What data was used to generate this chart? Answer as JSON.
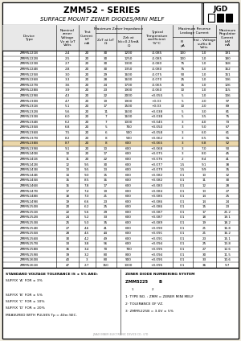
{
  "title": "ZMM52 - SERIES",
  "subtitle": "SURFACE MOUNT ZENER DIODES/MINI MELF",
  "bg_color": "#f0ece0",
  "rows": [
    [
      "ZMM5221B",
      "2.4",
      "20",
      "30",
      "1200",
      "-0.085",
      "100",
      "1.0",
      "191"
    ],
    [
      "ZMM5222B",
      "2.5",
      "20",
      "30",
      "1250",
      "-0.085",
      "100",
      "1.0",
      "180"
    ],
    [
      "ZMM5223B",
      "2.7",
      "20",
      "30",
      "1300",
      "-0.080",
      "75",
      "1.0",
      "168"
    ],
    [
      "ZMM5224B",
      "2.8",
      "20",
      "30",
      "1350",
      "-0.080",
      "75",
      "1.0",
      "162"
    ],
    [
      "ZMM5225B",
      "3.0",
      "20",
      "29",
      "1600",
      "-0.075",
      "50",
      "1.0",
      "151"
    ],
    [
      "ZMM5226B",
      "3.3",
      "20",
      "28",
      "1600",
      "-0.070",
      "25",
      "1.0",
      "136"
    ],
    [
      "ZMM5227B",
      "3.6",
      "20",
      "24",
      "1700",
      "-0.065",
      "15",
      "1.0",
      "126"
    ],
    [
      "ZMM5228B",
      "3.9",
      "20",
      "23",
      "1900",
      "-0.060",
      "10",
      "1.0",
      "115"
    ],
    [
      "ZMM5229B",
      "4.3",
      "20",
      "22",
      "2000",
      "+0.055",
      "5",
      "1.0",
      "106"
    ],
    [
      "ZMM5230B",
      "4.7",
      "20",
      "19",
      "1900",
      "+0.03",
      "5",
      "2.0",
      "97"
    ],
    [
      "ZMM5231B",
      "5.1",
      "20",
      "17",
      "1500",
      "+0.03",
      "10",
      "2.0",
      "89"
    ],
    [
      "ZMM5232B",
      "5.6",
      "20",
      "11",
      "1600",
      "+0.038",
      "5",
      "3.0",
      "81"
    ],
    [
      "ZMM5233B",
      "6.0",
      "20",
      "7",
      "1600",
      "+0.038",
      "5",
      "3.5",
      "75"
    ],
    [
      "ZMM5234B",
      "6.2",
      "20",
      "7",
      "1000",
      "+0.045",
      "3",
      "4.0",
      "73"
    ],
    [
      "ZMM5235B",
      "6.8",
      "20",
      "5",
      "750",
      "+0.050",
      "3",
      "5.0",
      "67"
    ],
    [
      "ZMM5236B",
      "7.5",
      "20",
      "6",
      "500",
      "+0.058",
      "3",
      "6.0",
      "61"
    ],
    [
      "ZMM5237B",
      "8.2",
      "20",
      "8",
      "500",
      "+0.062",
      "3",
      "6.5",
      "55"
    ],
    [
      "ZMM5238B",
      "8.7",
      "20",
      "8",
      "600",
      "+0.065",
      "3",
      "6.8",
      "52"
    ],
    [
      "ZMM5239B",
      "9.1",
      "20",
      "10",
      "600",
      "+0.068",
      "3",
      "7.0",
      "50"
    ],
    [
      "ZMM5240B",
      "10",
      "20",
      "17",
      "600",
      "+0.075",
      "3",
      "8.0",
      "45"
    ],
    [
      "ZMM5241B",
      "11",
      "20",
      "22",
      "600",
      "+0.076",
      "2",
      "8.4",
      "41"
    ],
    [
      "ZMM5242B",
      "12",
      "9.5",
      "30",
      "600",
      "+0.077",
      "1.5",
      "9.1",
      "38"
    ],
    [
      "ZMM5243B",
      "13",
      "9.5",
      "13",
      "600",
      "+0.079",
      "1.5",
      "9.9",
      "35"
    ],
    [
      "ZMM5244B",
      "14",
      "9.0",
      "15",
      "600",
      "+0.082",
      "0.1",
      "10",
      "32"
    ],
    [
      "ZMM5245B",
      "15",
      "8.5",
      "16",
      "600",
      "+0.082",
      "0.1",
      "11",
      "30"
    ],
    [
      "ZMM5246B",
      "16",
      "7.8",
      "17",
      "600",
      "+0.083",
      "0.1",
      "12",
      "28"
    ],
    [
      "ZMM5247B",
      "17",
      "7.4",
      "19",
      "600",
      "+0.084",
      "0.1",
      "13",
      "27"
    ],
    [
      "ZMM5248B",
      "18",
      "7.0",
      "21",
      "600",
      "+0.085",
      "0.1",
      "14",
      "25"
    ],
    [
      "ZMM5249B",
      "19",
      "6.6",
      "23",
      "600",
      "+0.086",
      "0.1",
      "14",
      "24"
    ],
    [
      "ZMM5250B",
      "20",
      "6.2",
      "25",
      "600",
      "+0.086",
      "0.1",
      "15",
      "23"
    ],
    [
      "ZMM5251B",
      "22",
      "5.6",
      "29",
      "600",
      "+0.087",
      "0.1",
      "17",
      "21.2"
    ],
    [
      "ZMM5252B",
      "24",
      "5.2",
      "33",
      "600",
      "+0.087",
      "0.1",
      "18",
      "19.1"
    ],
    [
      "ZMM5253B",
      "25",
      "5.0",
      "35",
      "600",
      "+0.089",
      "0.1",
      "19",
      "18.2"
    ],
    [
      "ZMM5254B",
      "27",
      "4.6",
      "41",
      "600",
      "+0.090",
      "0.1",
      "21",
      "16.8"
    ],
    [
      "ZMM5255B",
      "28",
      "4.5",
      "44",
      "600",
      "+0.091",
      "0.1",
      "21",
      "16.2"
    ],
    [
      "ZMM5256B",
      "30",
      "4.2",
      "49",
      "600",
      "+0.091",
      "0.1",
      "23",
      "15.1"
    ],
    [
      "ZMM5257B",
      "33",
      "3.8",
      "56",
      "600",
      "+0.094",
      "0.1",
      "25",
      "13.8"
    ],
    [
      "ZMM5258B",
      "36",
      "3.4",
      "70",
      "700",
      "+0.095",
      "0.1",
      "27",
      "12.6"
    ],
    [
      "ZMM5259B",
      "39",
      "3.2",
      "80",
      "800",
      "+0.094",
      "0.1",
      "30",
      "11.5"
    ],
    [
      "ZMM5260B",
      "43",
      "3",
      "80",
      "900",
      "+0.095",
      "0.1",
      "33",
      "10.6"
    ],
    [
      "ZMM5261B",
      "47",
      "2.7",
      "150",
      "1000",
      "+0.095",
      "0.1",
      "36",
      "9.7"
    ]
  ],
  "highlight_row": "ZMM5238B",
  "highlight_color": "#d4a843",
  "footnotes_left": [
    [
      "STANDARD VOLTAGE TOLERANCE IS ± 5% AND:",
      true,
      false
    ],
    [
      "SUFFIX ‘A’ FOR ± 3%",
      false,
      false
    ],
    [
      "",
      false,
      false
    ],
    [
      "SUFFIX ‘B’ FOR ± 5%",
      false,
      false
    ],
    [
      "SUFFIX ‘C’ FOR ± 10%",
      false,
      false
    ],
    [
      "SUFFIX ‘D’ FOR ± 20%",
      false,
      false
    ],
    [
      "MEASURED WITH PULSES Tp = 40m SEC.",
      false,
      false
    ]
  ],
  "company": "JINAO INNER ELECTRONIC DEVICE CO., LTD"
}
